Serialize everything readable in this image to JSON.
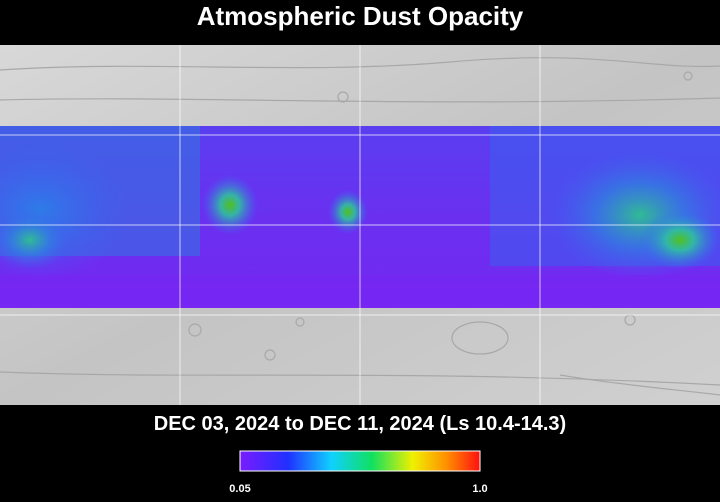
{
  "header": {
    "title": "Atmospheric Dust Opacity"
  },
  "caption": "DEC 03, 2024 to DEC 11, 2024 (Ls 10.4-14.3)",
  "colorbar": {
    "min_label": "0.05",
    "max_label": "1.0"
  }
}
